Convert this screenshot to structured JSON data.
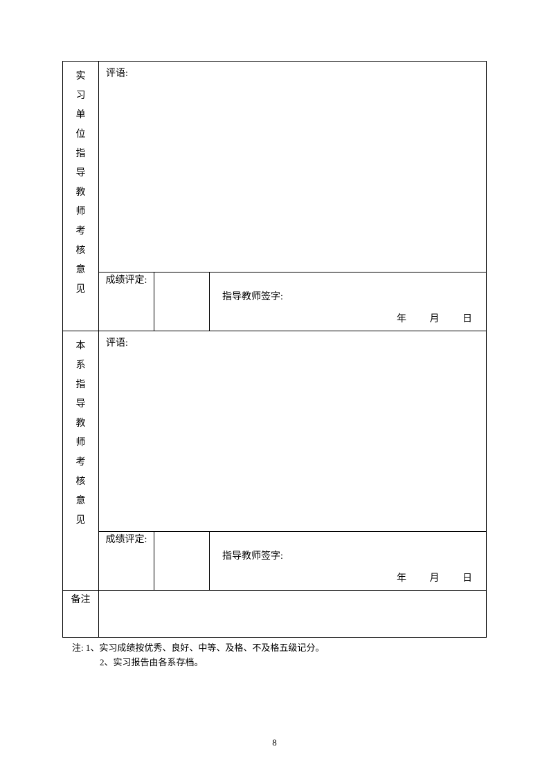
{
  "section1": {
    "vertical_label": "实习单位指导教师考核意见",
    "comment_label": "评语:",
    "grade_label": "成绩评定:",
    "signature_label": "指导教师签字:",
    "year": "年",
    "month": "月",
    "day": "日"
  },
  "section2": {
    "vertical_label": "本系指导教师考核意见",
    "comment_label": "评语:",
    "grade_label": "成绩评定:",
    "signature_label": "指导教师签字:",
    "year": "年",
    "month": "月",
    "day": "日"
  },
  "remark": {
    "label": "备注"
  },
  "notes": {
    "line1": "注: 1、实习成绩按优秀、良好、中等、及格、不及格五级记分。",
    "line2": "2、实习报告由各系存档。"
  },
  "page_number": "8"
}
